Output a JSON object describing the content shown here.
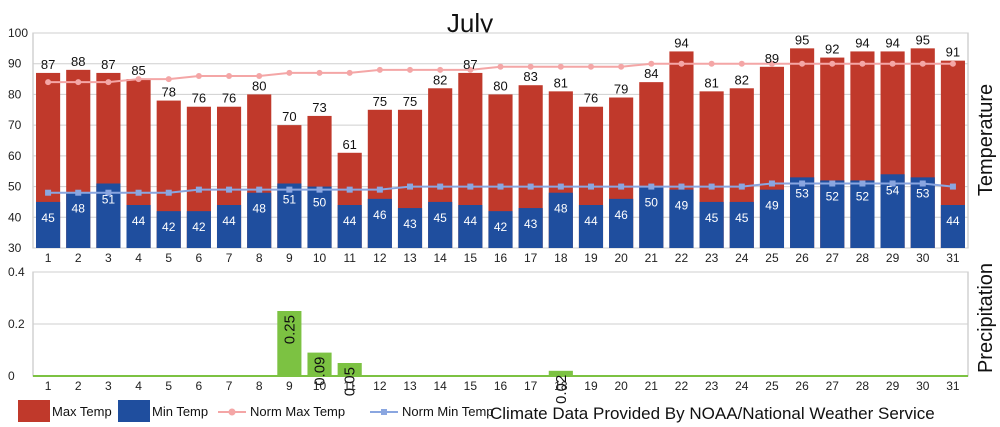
{
  "chart_data": [
    {
      "type": "bar",
      "title": "July",
      "ylabel": "Temperature",
      "ylim": [
        30,
        100
      ],
      "yticks": [
        30,
        40,
        50,
        60,
        70,
        80,
        90,
        100
      ],
      "categories": [
        "1",
        "2",
        "3",
        "4",
        "5",
        "6",
        "7",
        "8",
        "9",
        "10",
        "11",
        "12",
        "13",
        "14",
        "15",
        "16",
        "17",
        "18",
        "19",
        "20",
        "21",
        "22",
        "23",
        "24",
        "25",
        "26",
        "27",
        "28",
        "29",
        "30",
        "31"
      ],
      "series": [
        {
          "name": "Max Temp",
          "kind": "bar",
          "color": "#c0392b",
          "values": [
            87,
            88,
            87,
            85,
            78,
            76,
            76,
            80,
            70,
            73,
            61,
            75,
            75,
            82,
            87,
            80,
            83,
            81,
            76,
            79,
            84,
            94,
            81,
            82,
            89,
            95,
            92,
            94,
            94,
            95,
            91
          ]
        },
        {
          "name": "Min Temp",
          "kind": "bar",
          "color": "#1f4e9e",
          "values": [
            45,
            48,
            51,
            44,
            42,
            42,
            44,
            48,
            51,
            50,
            44,
            46,
            43,
            45,
            44,
            42,
            43,
            48,
            44,
            46,
            50,
            49,
            45,
            45,
            49,
            53,
            52,
            52,
            54,
            53,
            44
          ]
        },
        {
          "name": "Norm Max Temp",
          "kind": "line",
          "color": "#f4a6a6",
          "values": [
            84,
            84,
            84,
            85,
            85,
            86,
            86,
            86,
            87,
            87,
            87,
            88,
            88,
            88,
            88,
            89,
            89,
            89,
            89,
            89,
            90,
            90,
            90,
            90,
            90,
            90,
            90,
            90,
            90,
            90,
            90
          ]
        },
        {
          "name": "Norm Min Temp",
          "kind": "line",
          "color": "#8aa6e0",
          "values": [
            48,
            48,
            48,
            48,
            48,
            49,
            49,
            49,
            49,
            49,
            49,
            49,
            50,
            50,
            50,
            50,
            50,
            50,
            50,
            50,
            50,
            50,
            50,
            50,
            51,
            51,
            51,
            51,
            51,
            51,
            50
          ]
        }
      ],
      "grid": true,
      "legend": "bottom"
    },
    {
      "type": "bar",
      "ylabel": "Precipitation",
      "ylim": [
        0,
        0.4
      ],
      "yticks": [
        0,
        0.2,
        0.4
      ],
      "ytick_labels": [
        "0",
        "0.2",
        "0.4"
      ],
      "categories": [
        "1",
        "2",
        "3",
        "4",
        "5",
        "6",
        "7",
        "8",
        "9",
        "10",
        "11",
        "12",
        "13",
        "14",
        "15",
        "16",
        "17",
        "18",
        "19",
        "20",
        "21",
        "22",
        "23",
        "24",
        "25",
        "26",
        "27",
        "28",
        "29",
        "30",
        "31"
      ],
      "series": [
        {
          "name": "Precipitation",
          "color": "#7cc242",
          "values": [
            0,
            0,
            0,
            0,
            0,
            0,
            0,
            0,
            0.25,
            0.09,
            0.05,
            0,
            0,
            0,
            0,
            0,
            0,
            0.02,
            0,
            0,
            0,
            0,
            0,
            0,
            0,
            0,
            0,
            0,
            0,
            0,
            0
          ],
          "labels": [
            "",
            "",
            "",
            "",
            "",
            "",
            "",
            "",
            "0.25",
            "0.09",
            "0.05",
            "",
            "",
            "",
            "",
            "",
            "",
            "0.02",
            "",
            "",
            "",
            "",
            "",
            "",
            "",
            "",
            "",
            "",
            "",
            "",
            ""
          ]
        }
      ],
      "grid": true
    }
  ],
  "legend": {
    "items": [
      {
        "label": "Max Temp",
        "color": "#c0392b",
        "symbol": "box"
      },
      {
        "label": "Min Temp",
        "color": "#1f4e9e",
        "symbol": "box"
      },
      {
        "label": "Norm Max Temp",
        "color": "#f4a6a6",
        "symbol": "line"
      },
      {
        "label": "Norm Min Temp",
        "color": "#8aa6e0",
        "symbol": "line"
      }
    ],
    "credit": "Climate Data Provided By NOAA/National Weather Service"
  }
}
